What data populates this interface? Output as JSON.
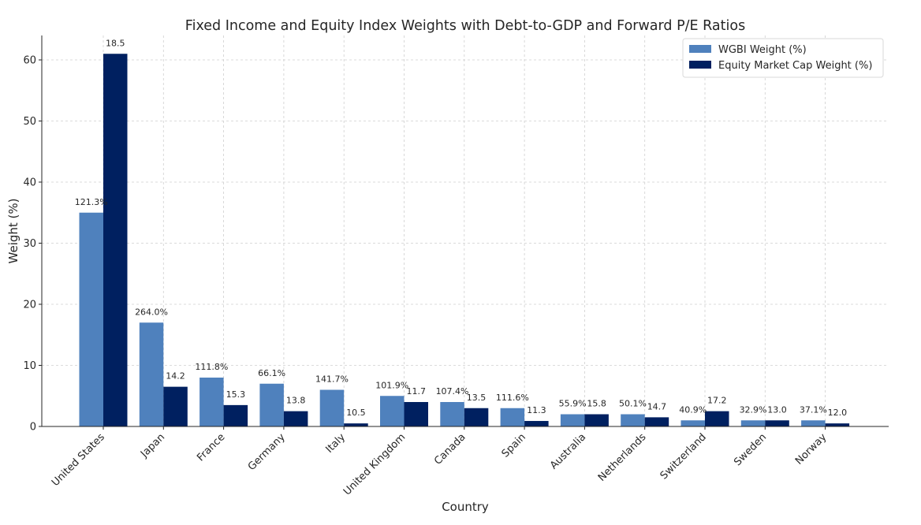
{
  "chart_data": {
    "type": "bar",
    "title": "Fixed Income and Equity Index Weights with Debt-to-GDP and Forward P/E Ratios",
    "xlabel": "Country",
    "ylabel": "Weight (%)",
    "ylim": [
      0,
      64
    ],
    "yticks": [
      0,
      10,
      20,
      30,
      40,
      50,
      60
    ],
    "grid": true,
    "legend_position": "top-right",
    "categories": [
      "United States",
      "Japan",
      "France",
      "Germany",
      "Italy",
      "United Kingdom",
      "Canada",
      "Spain",
      "Australia",
      "Netherlands",
      "Switzerland",
      "Sweden",
      "Norway"
    ],
    "series": [
      {
        "name": "WGBI Weight (%)",
        "color": "#4f81bd",
        "values": [
          35,
          17,
          8,
          7,
          6,
          5,
          4,
          3,
          2,
          2,
          1,
          1,
          1
        ],
        "labels": [
          "121.3%",
          "264.0%",
          "111.8%",
          "66.1%",
          "141.7%",
          "101.9%",
          "107.4%",
          "111.6%",
          "55.9%",
          "50.1%",
          "40.9%",
          "32.9%",
          "37.1%"
        ]
      },
      {
        "name": "Equity Market Cap Weight (%)",
        "color": "#002060",
        "values": [
          61,
          6.5,
          3.5,
          2.5,
          0.5,
          4,
          3,
          0.9,
          2,
          1.5,
          2.5,
          1,
          0.5
        ],
        "labels": [
          "18.5",
          "14.2",
          "15.3",
          "13.8",
          "10.5",
          "11.7",
          "13.5",
          "11.3",
          "15.8",
          "14.7",
          "17.2",
          "13.0",
          "12.0"
        ]
      }
    ]
  }
}
